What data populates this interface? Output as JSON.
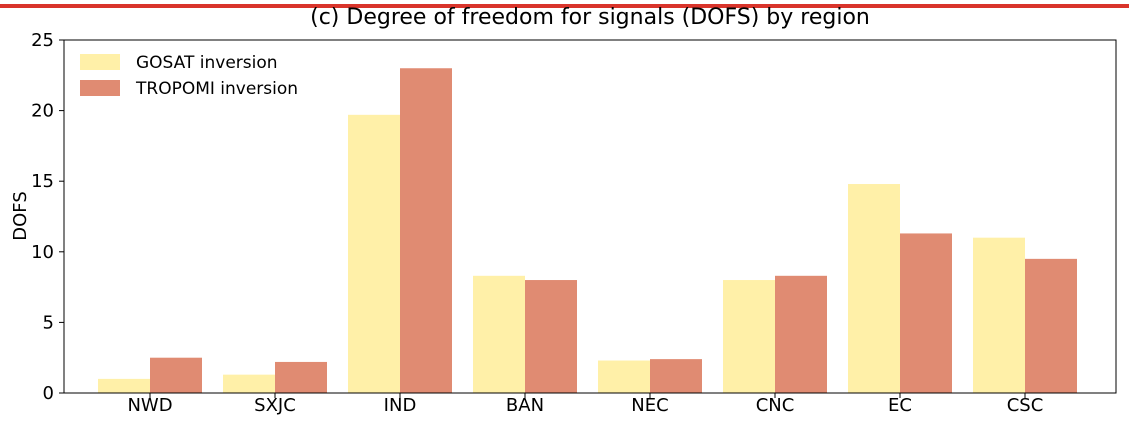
{
  "chart_data": {
    "type": "bar",
    "title": "(c) Degree of freedom for signals (DOFS) by region",
    "y_label": "DOFS",
    "categories": [
      "NWD",
      "SXJC",
      "IND",
      "BAN",
      "NEC",
      "CNC",
      "EC",
      "CSC"
    ],
    "series": [
      {
        "name": "GOSAT inversion",
        "color": "#fff0a8",
        "values": [
          1.0,
          1.3,
          19.7,
          8.3,
          2.3,
          8.0,
          14.8,
          11.0
        ]
      },
      {
        "name": "TROPOMI inversion",
        "color": "#e08b72",
        "values": [
          2.5,
          2.2,
          23.0,
          8.0,
          2.4,
          8.3,
          11.3,
          9.5
        ]
      }
    ],
    "ylim": [
      0,
      25
    ],
    "yticks": [
      0,
      5,
      10,
      15,
      20,
      25
    ],
    "grid": false,
    "legend": "upper left"
  }
}
